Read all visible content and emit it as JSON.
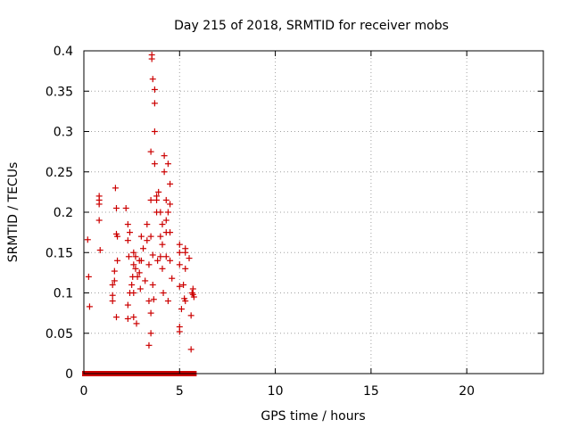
{
  "chart_data": {
    "type": "scatter",
    "title": "Day 215 of 2018, SRMTID for receiver mobs",
    "xlabel": "GPS time / hours",
    "ylabel": "SRMTID / TECUs",
    "xlim": [
      0,
      24
    ],
    "ylim": [
      0,
      0.4
    ],
    "xticks": [
      0,
      5,
      10,
      15,
      20
    ],
    "xtick_labels": [
      "0",
      "5",
      "10",
      "15",
      "20"
    ],
    "yticks": [
      0,
      0.05,
      0.1,
      0.15,
      0.2,
      0.25,
      0.3,
      0.35,
      0.4
    ],
    "ytick_labels": [
      "0",
      "0.05",
      "0.1",
      "0.15",
      "0.2",
      "0.25",
      "0.3",
      "0.35",
      "0.4"
    ],
    "grid": true,
    "marker": "+",
    "color": "#cc0000",
    "zero_band_range": [
      0.05,
      5.75
    ],
    "points": [
      [
        0.2,
        0.166
      ],
      [
        0.25,
        0.12
      ],
      [
        0.3,
        0.083
      ],
      [
        0.8,
        0.22
      ],
      [
        0.8,
        0.215
      ],
      [
        0.8,
        0.21
      ],
      [
        0.8,
        0.19
      ],
      [
        0.85,
        0.153
      ],
      [
        1.5,
        0.11
      ],
      [
        1.5,
        0.097
      ],
      [
        1.5,
        0.09
      ],
      [
        1.6,
        0.127
      ],
      [
        1.6,
        0.115
      ],
      [
        1.65,
        0.23
      ],
      [
        1.7,
        0.205
      ],
      [
        1.7,
        0.173
      ],
      [
        1.7,
        0.07
      ],
      [
        1.75,
        0.17
      ],
      [
        1.75,
        0.14
      ],
      [
        2.2,
        0.205
      ],
      [
        2.3,
        0.185
      ],
      [
        2.3,
        0.165
      ],
      [
        2.4,
        0.175
      ],
      [
        2.35,
        0.145
      ],
      [
        2.4,
        0.1
      ],
      [
        2.3,
        0.085
      ],
      [
        2.3,
        0.068
      ],
      [
        2.5,
        0.11
      ],
      [
        2.6,
        0.15
      ],
      [
        2.6,
        0.135
      ],
      [
        2.55,
        0.12
      ],
      [
        2.6,
        0.1
      ],
      [
        2.6,
        0.07
      ],
      [
        2.7,
        0.145
      ],
      [
        2.7,
        0.13
      ],
      [
        2.75,
        0.062
      ],
      [
        2.8,
        0.12
      ],
      [
        2.9,
        0.14
      ],
      [
        2.9,
        0.125
      ],
      [
        2.95,
        0.105
      ],
      [
        3.0,
        0.17
      ],
      [
        3.0,
        0.14
      ],
      [
        3.1,
        0.155
      ],
      [
        3.2,
        0.115
      ],
      [
        3.3,
        0.185
      ],
      [
        3.3,
        0.165
      ],
      [
        3.4,
        0.135
      ],
      [
        3.4,
        0.09
      ],
      [
        3.4,
        0.035
      ],
      [
        3.5,
        0.275
      ],
      [
        3.5,
        0.215
      ],
      [
        3.5,
        0.17
      ],
      [
        3.5,
        0.075
      ],
      [
        3.5,
        0.05
      ],
      [
        3.55,
        0.395
      ],
      [
        3.55,
        0.39
      ],
      [
        3.6,
        0.365
      ],
      [
        3.6,
        0.147
      ],
      [
        3.6,
        0.11
      ],
      [
        3.65,
        0.092
      ],
      [
        3.7,
        0.352
      ],
      [
        3.7,
        0.335
      ],
      [
        3.7,
        0.3
      ],
      [
        3.7,
        0.26
      ],
      [
        3.8,
        0.22
      ],
      [
        3.8,
        0.215
      ],
      [
        3.8,
        0.2
      ],
      [
        3.85,
        0.14
      ],
      [
        3.9,
        0.225
      ],
      [
        4.0,
        0.2
      ],
      [
        4.0,
        0.17
      ],
      [
        4.0,
        0.145
      ],
      [
        4.1,
        0.185
      ],
      [
        4.1,
        0.16
      ],
      [
        4.1,
        0.13
      ],
      [
        4.15,
        0.1
      ],
      [
        4.2,
        0.27
      ],
      [
        4.2,
        0.25
      ],
      [
        4.3,
        0.215
      ],
      [
        4.3,
        0.19
      ],
      [
        4.3,
        0.175
      ],
      [
        4.3,
        0.145
      ],
      [
        4.4,
        0.26
      ],
      [
        4.4,
        0.2
      ],
      [
        4.4,
        0.09
      ],
      [
        4.5,
        0.235
      ],
      [
        4.5,
        0.21
      ],
      [
        4.5,
        0.175
      ],
      [
        4.5,
        0.14
      ],
      [
        4.6,
        0.118
      ],
      [
        5.0,
        0.16
      ],
      [
        5.0,
        0.15
      ],
      [
        5.0,
        0.135
      ],
      [
        5.0,
        0.108
      ],
      [
        5.0,
        0.058
      ],
      [
        5.0,
        0.052
      ],
      [
        5.1,
        0.08
      ],
      [
        5.2,
        0.11
      ],
      [
        5.25,
        0.093
      ],
      [
        5.3,
        0.155
      ],
      [
        5.3,
        0.15
      ],
      [
        5.3,
        0.13
      ],
      [
        5.3,
        0.09
      ],
      [
        5.5,
        0.143
      ],
      [
        5.6,
        0.072
      ],
      [
        5.6,
        0.03
      ],
      [
        5.65,
        0.1
      ],
      [
        5.7,
        0.105
      ],
      [
        5.7,
        0.098
      ],
      [
        5.75,
        0.095
      ]
    ]
  }
}
